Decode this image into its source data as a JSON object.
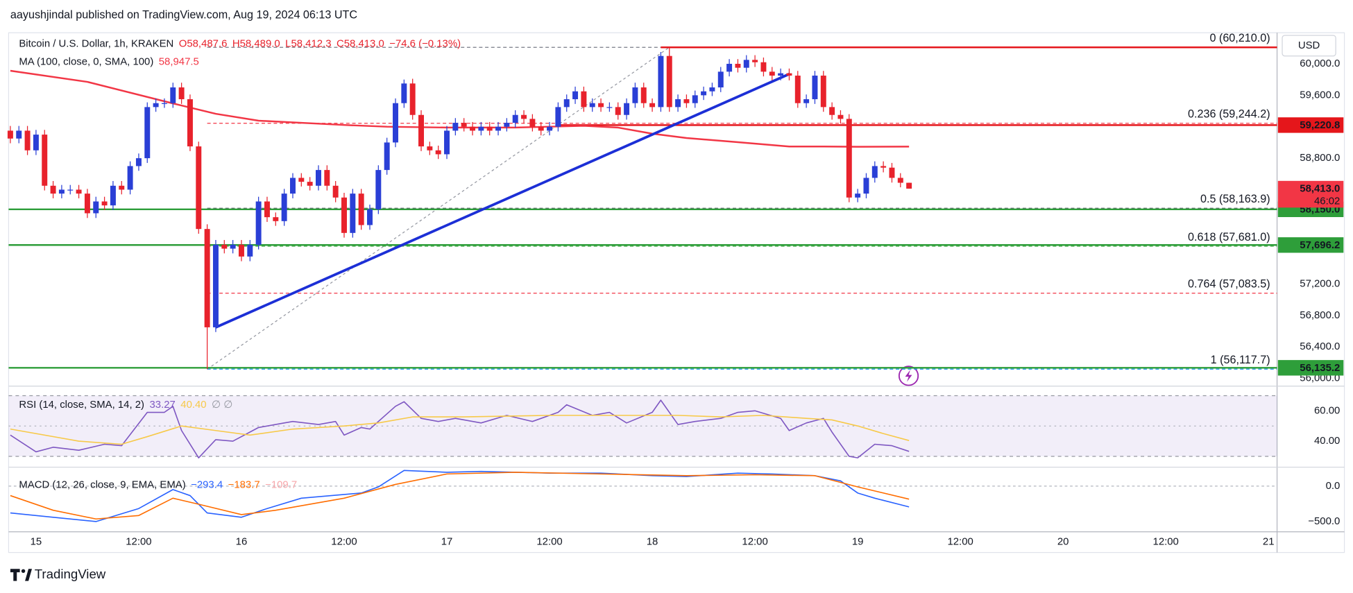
{
  "header": {
    "text": "aayushjindal published on TradingView.com, Aug 19, 2024 06:13 UTC"
  },
  "footer": {
    "brand": "TradingView"
  },
  "chart_data": [
    {
      "type": "candlestick",
      "title": "Bitcoin / U.S. Dollar, 1h, KRAKEN",
      "legend_values": [
        "O58,487.6",
        "H58,489.0",
        "L58,412.3",
        "C58,413.0",
        "−74.6 (−0.13%)"
      ],
      "currency": "USD",
      "up_color": "#2a3fd6",
      "down_color": "#e8222c",
      "x": [
        -3,
        -2,
        -1,
        0,
        1,
        2,
        3,
        4,
        5,
        6,
        7,
        8,
        9,
        10,
        11,
        12,
        13,
        14,
        15,
        16,
        17,
        18,
        19,
        20,
        21,
        22,
        23,
        24,
        25,
        26,
        27,
        28,
        29,
        30,
        31,
        32,
        33,
        34,
        35,
        36,
        37,
        38,
        39,
        40,
        41,
        42,
        43,
        44,
        45,
        46,
        47,
        48,
        49,
        50,
        51,
        52,
        53,
        54,
        55,
        56,
        57,
        58,
        59,
        60,
        61,
        62,
        63,
        64,
        65,
        66,
        67,
        68,
        69,
        70,
        71,
        72,
        73,
        74,
        75,
        76,
        77,
        78,
        79,
        80,
        81,
        82,
        83,
        84,
        85,
        86,
        87,
        88,
        89,
        90,
        91,
        92,
        93,
        94,
        95,
        96,
        97,
        98,
        99,
        100,
        101,
        102
      ],
      "open": [
        59150,
        59050,
        59150,
        58900,
        59100,
        58450,
        58350,
        58400,
        58400,
        58350,
        58100,
        58250,
        58200,
        58450,
        58400,
        58700,
        58800,
        59450,
        59500,
        59500,
        59700,
        59550,
        58950,
        57900,
        56650,
        57700,
        57650,
        57700,
        57550,
        57700,
        58250,
        58050,
        58000,
        58350,
        58550,
        58500,
        58450,
        58650,
        58450,
        58300,
        57850,
        58350,
        57950,
        58150,
        58650,
        59000,
        59500,
        59750,
        59350,
        58950,
        58900,
        58850,
        59150,
        59250,
        59200,
        59150,
        59200,
        59150,
        59200,
        59250,
        59350,
        59300,
        59200,
        59150,
        59200,
        59450,
        59550,
        59650,
        59450,
        59500,
        59450,
        59450,
        59350,
        59500,
        59700,
        59500,
        59450,
        60100,
        59450,
        59550,
        59500,
        59600,
        59650,
        59700,
        59900,
        60000,
        59950,
        60050,
        60020,
        59900,
        59850,
        59880,
        59850,
        59500,
        59550,
        59850,
        59450,
        59350,
        59300,
        58300,
        58350,
        58550,
        58700,
        58680,
        58550,
        58487.6
      ],
      "high": [
        59210,
        59210,
        59210,
        59160,
        59160,
        58510,
        58460,
        58460,
        58460,
        58410,
        58310,
        58310,
        58510,
        58510,
        58760,
        58860,
        59510,
        59560,
        59560,
        59760,
        59760,
        59610,
        59010,
        57960,
        57760,
        57760,
        57760,
        57760,
        57760,
        58310,
        58310,
        58110,
        58410,
        58610,
        58610,
        58560,
        58710,
        58710,
        58510,
        58360,
        58410,
        58410,
        58210,
        58710,
        59060,
        59560,
        59800,
        59810,
        59410,
        59010,
        58960,
        59210,
        59310,
        59310,
        59260,
        59260,
        59260,
        59260,
        59310,
        59410,
        59410,
        59360,
        59260,
        59260,
        59510,
        59610,
        59710,
        59710,
        59560,
        59560,
        59510,
        59510,
        59560,
        59760,
        59760,
        59560,
        60150,
        60210,
        59610,
        59610,
        59660,
        59710,
        59760,
        59960,
        60060,
        60060,
        60110,
        60110,
        60080,
        59960,
        59940,
        59940,
        59910,
        59610,
        59910,
        59910,
        59510,
        59410,
        59360,
        58410,
        58610,
        58760,
        58760,
        58740,
        58610,
        58489.0
      ],
      "low": [
        58990,
        58990,
        58840,
        58840,
        58390,
        58290,
        58290,
        58340,
        58290,
        58040,
        58040,
        58140,
        58140,
        58340,
        58340,
        58640,
        58740,
        59390,
        59440,
        59440,
        59490,
        58890,
        57840,
        56117.7,
        56590,
        57590,
        57590,
        57490,
        57490,
        57640,
        57990,
        57940,
        57940,
        58290,
        58440,
        58390,
        58390,
        58390,
        58240,
        57790,
        57790,
        57890,
        57890,
        58090,
        58590,
        58940,
        59440,
        59290,
        58890,
        58840,
        58790,
        58790,
        59090,
        59140,
        59090,
        59090,
        59090,
        59090,
        59140,
        59190,
        59240,
        59140,
        59090,
        59090,
        59140,
        59390,
        59490,
        59390,
        59390,
        59390,
        59390,
        59290,
        59290,
        59440,
        59440,
        59390,
        59390,
        59390,
        59390,
        59440,
        59440,
        59540,
        59590,
        59640,
        59840,
        59890,
        59890,
        59960,
        59840,
        59790,
        59790,
        59790,
        59440,
        59440,
        59490,
        59390,
        59290,
        59240,
        58240,
        58240,
        58290,
        58490,
        58620,
        58490,
        58430,
        58412.3
      ],
      "close": [
        59050,
        59150,
        58900,
        59100,
        58450,
        58350,
        58400,
        58400,
        58350,
        58100,
        58250,
        58200,
        58450,
        58400,
        58700,
        58800,
        59450,
        59500,
        59500,
        59700,
        59550,
        58950,
        57900,
        56650,
        57700,
        57650,
        57700,
        57550,
        57700,
        58250,
        58050,
        58000,
        58350,
        58550,
        58500,
        58450,
        58650,
        58450,
        58300,
        57850,
        58350,
        57950,
        58150,
        58650,
        59000,
        59500,
        59750,
        59350,
        58950,
        58900,
        58850,
        59150,
        59250,
        59200,
        59150,
        59200,
        59150,
        59200,
        59250,
        59350,
        59300,
        59200,
        59150,
        59200,
        59450,
        59550,
        59650,
        59450,
        59500,
        59450,
        59450,
        59350,
        59500,
        59700,
        59500,
        59450,
        60100,
        59450,
        59550,
        59500,
        59600,
        59650,
        59700,
        59900,
        60000,
        59950,
        60050,
        60020,
        59900,
        59850,
        59880,
        59850,
        59500,
        59550,
        59850,
        59450,
        59350,
        59300,
        58300,
        58350,
        58550,
        58700,
        58680,
        58550,
        58487.6,
        58413.0
      ],
      "xlim": [
        -3.2,
        145
      ],
      "xticks": [
        {
          "value": 0,
          "label": "15"
        },
        {
          "value": 12,
          "label": "12:00"
        },
        {
          "value": 24,
          "label": "16"
        },
        {
          "value": 36,
          "label": "12:00"
        },
        {
          "value": 48,
          "label": "17"
        },
        {
          "value": 60,
          "label": "12:00"
        },
        {
          "value": 72,
          "label": "18"
        },
        {
          "value": 84,
          "label": "12:00"
        },
        {
          "value": 96,
          "label": "19"
        },
        {
          "value": 108,
          "label": "12:00"
        },
        {
          "value": 120,
          "label": "20"
        },
        {
          "value": 132,
          "label": "12:00"
        },
        {
          "value": 144,
          "label": "21"
        }
      ],
      "ylim": [
        55935,
        60373
      ],
      "yticks": [
        {
          "value": 60000,
          "label": "60,000.0"
        },
        {
          "value": 59600,
          "label": "59,600.0"
        },
        {
          "value": 58800,
          "label": "58,800.0"
        },
        {
          "value": 57200,
          "label": "57,200.0"
        },
        {
          "value": 56800,
          "label": "56,800.0"
        },
        {
          "value": 56400,
          "label": "56,400.0"
        },
        {
          "value": 56000,
          "label": "56,000.0"
        }
      ],
      "ma": {
        "name": "MA (100, close, 0, SMA, 100)",
        "value_label": "58,947.5",
        "color": "#f23645",
        "x": [
          -3,
          6,
          16,
          21,
          26,
          36,
          41,
          48,
          56,
          64,
          68,
          72,
          76,
          82,
          88,
          92,
          96,
          102
        ],
        "values": [
          59912,
          59770,
          59496,
          59365,
          59277,
          59222,
          59200,
          59189,
          59189,
          59211,
          59189,
          59112,
          59057,
          59003,
          58948,
          58948,
          58945,
          58947.5
        ]
      },
      "trendline": {
        "color": "#1c2fd6",
        "x": [
          21,
          88
        ],
        "values": [
          56650,
          59870
        ]
      },
      "fibonacci": {
        "x": [
          20,
          74
        ],
        "values": [
          56117.7,
          60210.0
        ],
        "levels": [
          {
            "value": 60210.0,
            "label": "0 (60,210.0)",
            "color": "#787b86"
          },
          {
            "value": 59244.2,
            "label": "0.236 (59,244.2)",
            "color": "#f23645"
          },
          {
            "value": 58163.9,
            "label": "0.5 (58,163.9)",
            "color": "#5d606b"
          },
          {
            "value": 57681.0,
            "label": "0.618 (57,681.0)",
            "color": "#4caf50"
          },
          {
            "value": 57083.5,
            "label": "0.764 (57,083.5)",
            "color": "#f23645"
          },
          {
            "value": 56117.7,
            "label": "1 (56,117.7)",
            "color": "#2196f3"
          }
        ]
      },
      "levels": [
        {
          "value": 60210.0,
          "color": "#e5161b",
          "x_from": 73
        },
        {
          "value": 59220.8,
          "label": "59,220.8",
          "color": "#e5161b",
          "x_from": 61
        },
        {
          "value": 58150.0,
          "label": "58,150.0",
          "color": "#2e9e3a"
        },
        {
          "value": 57696.2,
          "label": "57,696.2",
          "color": "#2e9e3a"
        },
        {
          "value": 56135.2,
          "label": "56,135.2",
          "color": "#2e9e3a"
        }
      ],
      "current_price": {
        "value": 58413.0,
        "label": "58,413.0",
        "countdown": "46:02",
        "color": "#f23645"
      }
    },
    {
      "type": "line",
      "title": "RSI (14, close, SMA, 14, 2)",
      "extra_label": "∅ ∅",
      "band": [
        30,
        70
      ],
      "midline": 50,
      "series": [
        {
          "value_label": "33.27",
          "color": "#7e57c2",
          "x": [
            -3,
            0,
            2,
            5,
            8,
            10,
            13,
            15,
            16,
            17,
            19,
            21,
            23,
            26,
            29,
            30,
            33,
            35,
            36,
            38,
            39,
            42,
            43,
            45,
            47,
            49,
            52,
            55,
            58,
            61,
            62,
            65,
            67,
            69,
            72,
            73,
            75,
            77,
            80,
            82,
            84,
            87,
            88,
            90,
            92,
            93,
            95,
            96,
            98,
            100,
            102
          ],
          "values": [
            44,
            33,
            36,
            34,
            38,
            37,
            59,
            59,
            63,
            47,
            29,
            41,
            40,
            49,
            52,
            53,
            51,
            53,
            44,
            49,
            48,
            63,
            66,
            55,
            53,
            55,
            52,
            57,
            53,
            59,
            64,
            57,
            59,
            52,
            59,
            67,
            51,
            53,
            55,
            59,
            60,
            55,
            47,
            52,
            55,
            46,
            30,
            29,
            38,
            37,
            33.27
          ]
        },
        {
          "value_label": "40.40",
          "color": "#f7c948",
          "x": [
            -3,
            5,
            10,
            13,
            17,
            21,
            25,
            30,
            36,
            40,
            44,
            50,
            60,
            70,
            75,
            80,
            85,
            90,
            93,
            96,
            99,
            102
          ],
          "values": [
            48,
            40,
            38,
            43,
            50,
            47,
            44,
            48,
            50,
            52,
            56,
            56,
            57,
            57,
            57,
            56,
            57,
            55,
            54,
            50,
            45,
            40.4
          ]
        }
      ],
      "ylim": [
        24,
        74
      ],
      "yticks": [
        {
          "value": 60,
          "label": "60.00"
        },
        {
          "value": 40,
          "label": "40.00"
        }
      ]
    },
    {
      "type": "line",
      "title": "MACD (12, 26, close, 9, EMA, EMA)",
      "extra_label": "−109.7",
      "zero_line": true,
      "series": [
        {
          "value_label": "−293.4",
          "color": "#2962ff",
          "x": [
            -3,
            2,
            7,
            12,
            16,
            18,
            20,
            24,
            27,
            31,
            38,
            40,
            43,
            48,
            52,
            60,
            66,
            72,
            76,
            82,
            86,
            91,
            94,
            96,
            98,
            102
          ],
          "values": [
            -378,
            -439,
            -500,
            -317,
            -49,
            -134,
            -378,
            -439,
            -317,
            -171,
            -98,
            -12,
            220,
            195,
            207,
            183,
            183,
            146,
            134,
            183,
            171,
            146,
            73,
            -98,
            -171,
            -293.4
          ]
        },
        {
          "value_label": "−183.7",
          "color": "#ff6d00",
          "x": [
            -3,
            2,
            7,
            12,
            16,
            19,
            24,
            28,
            36,
            42,
            48,
            56,
            66,
            76,
            84,
            91,
            96,
            102
          ],
          "values": [
            -134,
            -341,
            -463,
            -415,
            -171,
            -256,
            -402,
            -341,
            -171,
            24,
            171,
            195,
            171,
            146,
            159,
            146,
            -12,
            -183.7
          ]
        }
      ],
      "ylim": [
        -620,
        230
      ],
      "yticks": [
        {
          "value": 0,
          "label": "0.0"
        },
        {
          "value": -500,
          "label": "−500.0"
        }
      ]
    }
  ]
}
